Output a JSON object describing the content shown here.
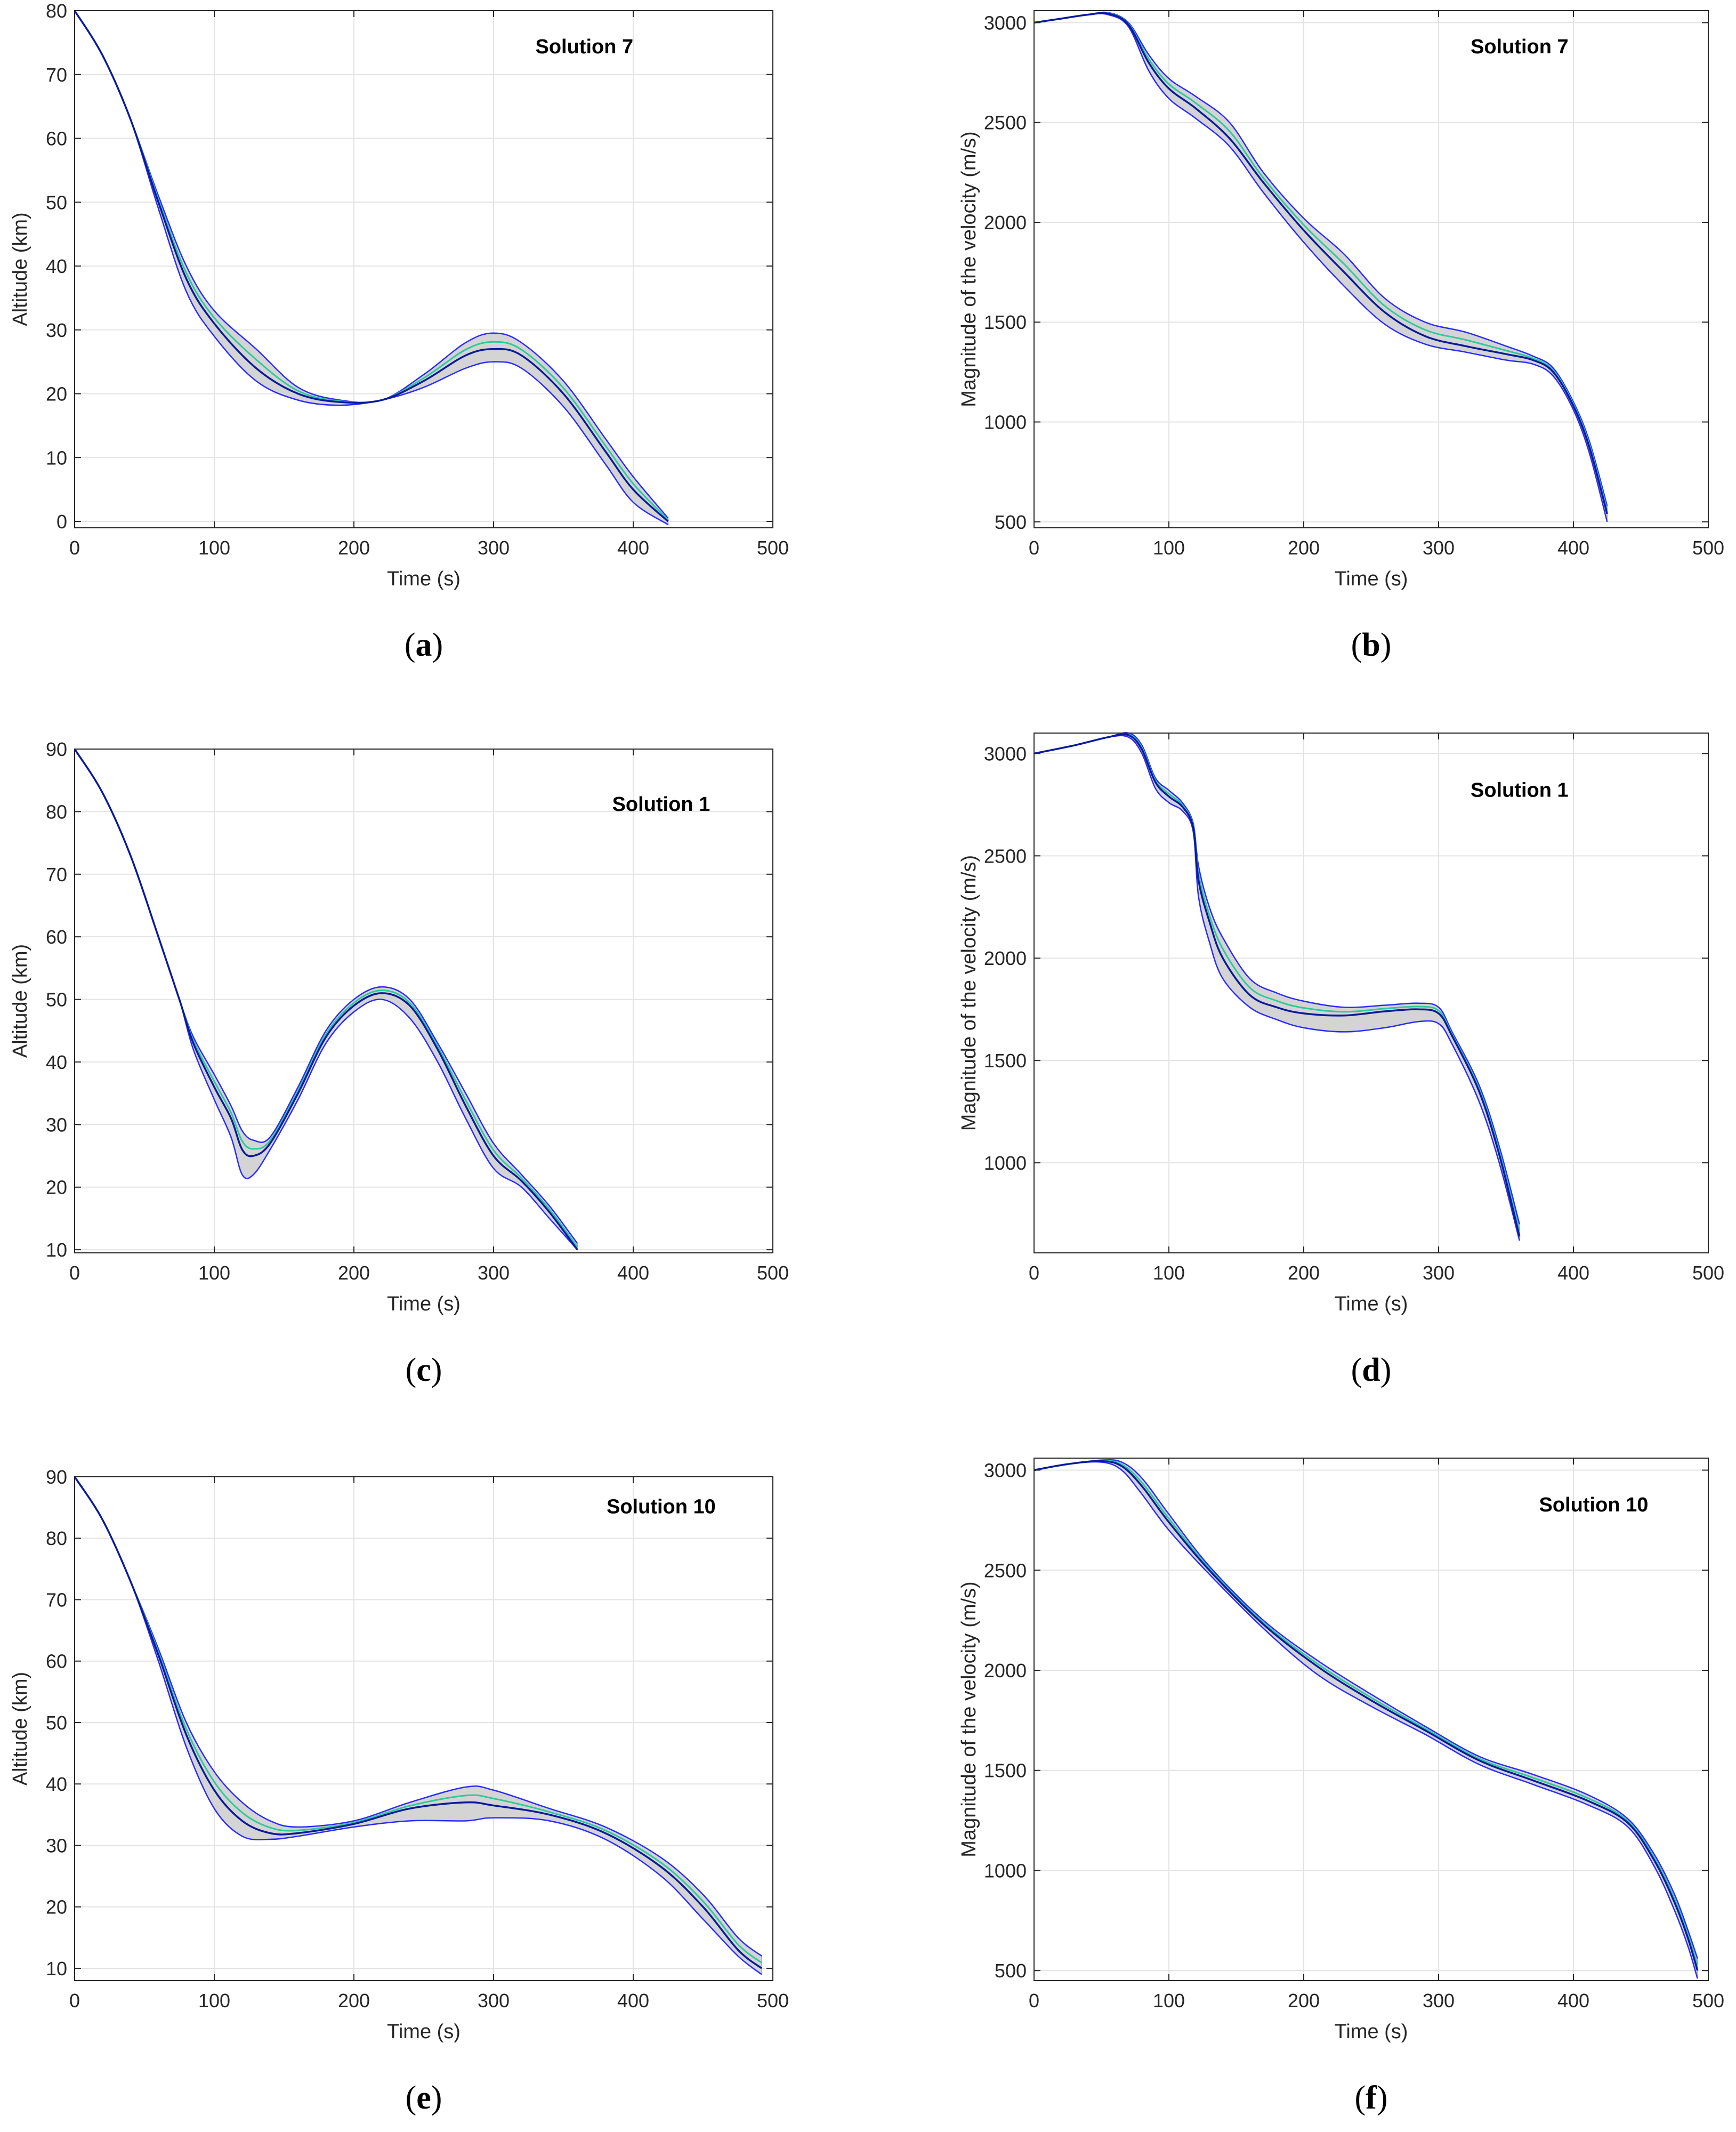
{
  "colors": {
    "band": "#d4d4d4",
    "band_edge": "#a8a8a8",
    "envelope": "#2a2aff",
    "mean": "#0a1a9a",
    "reference": "#2ec99a",
    "grid": "#e3e3e3",
    "axis": "#262626"
  },
  "chart_data": [
    {
      "id": "a",
      "type": "line",
      "caption": "a",
      "annotation": "Solution 7",
      "xlabel": "Time (s)",
      "ylabel": "Altitude (km)",
      "xlim": [
        0,
        500
      ],
      "ylim": [
        -1,
        80
      ],
      "xticks": [
        0,
        100,
        200,
        300,
        400,
        500
      ],
      "yticks": [
        0,
        10,
        20,
        30,
        40,
        50,
        60,
        70,
        80
      ],
      "grid": true,
      "series": [
        {
          "name": "upper",
          "x": [
            0,
            20,
            40,
            60,
            80,
            100,
            130,
            160,
            190,
            220,
            250,
            280,
            300,
            320,
            350,
            380,
            400,
            425
          ],
          "y": [
            80,
            73,
            63,
            51,
            40,
            33,
            27,
            21,
            19,
            19,
            23,
            28,
            29.5,
            28,
            22,
            13,
            7,
            0.5
          ]
        },
        {
          "name": "mean",
          "x": [
            0,
            20,
            40,
            60,
            80,
            100,
            130,
            160,
            190,
            220,
            250,
            280,
            300,
            320,
            350,
            380,
            400,
            425
          ],
          "y": [
            80,
            73,
            63,
            50,
            38,
            31,
            24,
            20,
            18.7,
            19,
            22,
            26,
            27,
            26,
            20,
            11,
            5,
            0
          ]
        },
        {
          "name": "lower",
          "x": [
            0,
            20,
            40,
            60,
            80,
            100,
            130,
            160,
            190,
            220,
            250,
            280,
            300,
            320,
            350,
            380,
            400,
            425
          ],
          "y": [
            80,
            73,
            63,
            49,
            36,
            29,
            22,
            19,
            18.2,
            19,
            21,
            24,
            25,
            24,
            18,
            9,
            3,
            -0.5
          ]
        }
      ]
    },
    {
      "id": "b",
      "type": "line",
      "caption": "b",
      "annotation": "Solution 7",
      "xlabel": "Time (s)",
      "ylabel": "Magnitude of the velocity (m/s)",
      "xlim": [
        0,
        500
      ],
      "ylim": [
        470,
        3060
      ],
      "xticks": [
        0,
        100,
        200,
        300,
        400,
        500
      ],
      "yticks": [
        500,
        1000,
        1500,
        2000,
        2500,
        3000
      ],
      "grid": true,
      "series": [
        {
          "name": "upper",
          "x": [
            0,
            20,
            40,
            55,
            70,
            85,
            100,
            120,
            145,
            170,
            200,
            230,
            260,
            290,
            320,
            350,
            370,
            385,
            400,
            412,
            425
          ],
          "y": [
            3000,
            3020,
            3040,
            3050,
            3000,
            2840,
            2720,
            2630,
            2500,
            2250,
            2020,
            1840,
            1620,
            1500,
            1450,
            1380,
            1330,
            1270,
            1100,
            900,
            580
          ]
        },
        {
          "name": "mean",
          "x": [
            0,
            20,
            40,
            55,
            70,
            85,
            100,
            120,
            145,
            170,
            200,
            230,
            260,
            290,
            320,
            350,
            370,
            385,
            400,
            412,
            425
          ],
          "y": [
            3000,
            3020,
            3040,
            3045,
            2990,
            2800,
            2670,
            2570,
            2420,
            2200,
            1960,
            1750,
            1550,
            1430,
            1380,
            1340,
            1310,
            1250,
            1080,
            870,
            540
          ]
        },
        {
          "name": "lower",
          "x": [
            0,
            20,
            40,
            55,
            70,
            85,
            100,
            120,
            145,
            170,
            200,
            230,
            260,
            290,
            320,
            350,
            370,
            385,
            400,
            412,
            425
          ],
          "y": [
            3000,
            3020,
            3040,
            3040,
            2980,
            2760,
            2620,
            2520,
            2380,
            2150,
            1900,
            1680,
            1490,
            1390,
            1350,
            1310,
            1290,
            1230,
            1060,
            840,
            500
          ]
        }
      ]
    },
    {
      "id": "c",
      "type": "line",
      "caption": "c",
      "annotation": "Solution 1",
      "xlabel": "Time (s)",
      "ylabel": "Altitude (km)",
      "xlim": [
        0,
        500
      ],
      "ylim": [
        9.5,
        90
      ],
      "xticks": [
        0,
        100,
        200,
        300,
        400,
        500
      ],
      "yticks": [
        10,
        20,
        30,
        40,
        50,
        60,
        70,
        80,
        90
      ],
      "grid": true,
      "series": [
        {
          "name": "upper",
          "x": [
            0,
            20,
            40,
            60,
            75,
            85,
            100,
            112,
            120,
            128,
            140,
            160,
            180,
            200,
            220,
            240,
            260,
            280,
            300,
            320,
            340,
            360
          ],
          "y": [
            90,
            83,
            73,
            60,
            50,
            44,
            38,
            33,
            29,
            27.5,
            28,
            36,
            45,
            50,
            52,
            50,
            43,
            35,
            27,
            22,
            17,
            11
          ]
        },
        {
          "name": "mean",
          "x": [
            0,
            20,
            40,
            60,
            75,
            85,
            100,
            112,
            120,
            128,
            140,
            160,
            180,
            200,
            220,
            240,
            260,
            280,
            300,
            320,
            340,
            360
          ],
          "y": [
            90,
            83,
            73,
            60,
            50,
            43,
            36,
            31,
            26,
            25,
            27,
            35,
            44,
            49,
            51,
            49,
            42,
            33,
            25,
            21,
            16,
            10
          ]
        },
        {
          "name": "lower",
          "x": [
            0,
            20,
            40,
            60,
            75,
            85,
            100,
            112,
            120,
            128,
            140,
            160,
            180,
            200,
            220,
            240,
            260,
            280,
            300,
            320,
            340,
            360
          ],
          "y": [
            90,
            83,
            73,
            60,
            50,
            42,
            34,
            28,
            22,
            22,
            26,
            34,
            43,
            48,
            50,
            47,
            40,
            31,
            23,
            20,
            15,
            10
          ]
        }
      ]
    },
    {
      "id": "d",
      "type": "line",
      "caption": "d",
      "annotation": "Solution 1",
      "xlabel": "Time (s)",
      "ylabel": "Magnitude of the velocity (m/s)",
      "xlim": [
        0,
        500
      ],
      "ylim": [
        560,
        3100
      ],
      "xticks": [
        0,
        100,
        200,
        300,
        400,
        500
      ],
      "yticks": [
        1000,
        1500,
        2000,
        2500,
        3000
      ],
      "grid": true,
      "series": [
        {
          "name": "upper",
          "x": [
            0,
            30,
            55,
            70,
            80,
            90,
            100,
            110,
            118,
            122,
            130,
            140,
            160,
            180,
            200,
            230,
            260,
            285,
            300,
            310,
            330,
            345,
            360
          ],
          "y": [
            3000,
            3040,
            3080,
            3100,
            3040,
            2880,
            2820,
            2760,
            2660,
            2450,
            2250,
            2100,
            1900,
            1830,
            1790,
            1760,
            1770,
            1780,
            1760,
            1640,
            1380,
            1080,
            700
          ]
        },
        {
          "name": "mean",
          "x": [
            0,
            30,
            55,
            70,
            80,
            90,
            100,
            110,
            118,
            122,
            130,
            140,
            160,
            180,
            200,
            230,
            260,
            285,
            300,
            310,
            330,
            345,
            360
          ],
          "y": [
            3000,
            3040,
            3080,
            3090,
            3020,
            2860,
            2790,
            2740,
            2640,
            2380,
            2180,
            2000,
            1820,
            1760,
            1730,
            1720,
            1740,
            1750,
            1730,
            1620,
            1350,
            1040,
            640
          ]
        },
        {
          "name": "lower",
          "x": [
            0,
            30,
            55,
            70,
            80,
            90,
            100,
            110,
            118,
            122,
            130,
            140,
            160,
            180,
            200,
            230,
            260,
            285,
            300,
            310,
            330,
            345,
            360
          ],
          "y": [
            3000,
            3040,
            3080,
            3080,
            3000,
            2830,
            2760,
            2720,
            2620,
            2300,
            2080,
            1900,
            1760,
            1700,
            1660,
            1640,
            1660,
            1690,
            1680,
            1580,
            1300,
            1000,
            620
          ]
        }
      ]
    },
    {
      "id": "e",
      "type": "line",
      "caption": "e",
      "annotation": "Solution 10",
      "xlabel": "Time (s)",
      "ylabel": "Altitude (km)",
      "xlim": [
        0,
        500
      ],
      "ylim": [
        8,
        90
      ],
      "xticks": [
        0,
        100,
        200,
        300,
        400,
        500
      ],
      "yticks": [
        10,
        20,
        30,
        40,
        50,
        60,
        70,
        80,
        90
      ],
      "grid": true,
      "series": [
        {
          "name": "upper",
          "x": [
            0,
            20,
            40,
            60,
            80,
            100,
            120,
            140,
            160,
            200,
            240,
            280,
            300,
            340,
            380,
            420,
            450,
            475,
            492
          ],
          "y": [
            90,
            83,
            73,
            62,
            50,
            42,
            37,
            34,
            33,
            34,
            37,
            39.5,
            39,
            36,
            33,
            28,
            22,
            15,
            12
          ]
        },
        {
          "name": "mean",
          "x": [
            0,
            20,
            40,
            60,
            80,
            100,
            120,
            140,
            160,
            200,
            240,
            280,
            300,
            340,
            380,
            420,
            450,
            475,
            492
          ],
          "y": [
            90,
            83,
            73,
            61,
            48,
            39,
            34,
            32,
            32,
            33.5,
            36,
            37,
            36.5,
            35,
            32,
            26.5,
            20,
            13,
            10
          ]
        },
        {
          "name": "lower",
          "x": [
            0,
            20,
            40,
            60,
            80,
            100,
            120,
            140,
            160,
            200,
            240,
            280,
            300,
            340,
            380,
            420,
            450,
            475,
            492
          ],
          "y": [
            90,
            83,
            73,
            60,
            46,
            36,
            31.5,
            31,
            31.5,
            33,
            34,
            34,
            34.5,
            34,
            31,
            25,
            18,
            12,
            9
          ]
        }
      ]
    },
    {
      "id": "f",
      "type": "line",
      "caption": "f",
      "annotation": "Solution 10",
      "xlabel": "Time (s)",
      "ylabel": "Magnitude of the velocity (m/s)",
      "xlim": [
        0,
        500
      ],
      "ylim": [
        450,
        3060
      ],
      "xticks": [
        0,
        100,
        200,
        300,
        400,
        500
      ],
      "yticks": [
        500,
        1000,
        1500,
        2000,
        2500,
        3000
      ],
      "grid": true,
      "series": [
        {
          "name": "upper",
          "x": [
            0,
            25,
            50,
            65,
            80,
            100,
            130,
            170,
            210,
            250,
            290,
            330,
            370,
            410,
            440,
            460,
            475,
            485,
            492
          ],
          "y": [
            3000,
            3030,
            3050,
            3040,
            2960,
            2780,
            2520,
            2250,
            2050,
            1880,
            1720,
            1570,
            1480,
            1380,
            1260,
            1080,
            880,
            700,
            560
          ]
        },
        {
          "name": "mean",
          "x": [
            0,
            25,
            50,
            65,
            80,
            100,
            130,
            170,
            210,
            250,
            290,
            330,
            370,
            410,
            440,
            460,
            475,
            485,
            492
          ],
          "y": [
            3000,
            3030,
            3045,
            3020,
            2920,
            2740,
            2500,
            2230,
            2020,
            1850,
            1700,
            1550,
            1450,
            1350,
            1240,
            1050,
            840,
            660,
            500
          ]
        },
        {
          "name": "lower",
          "x": [
            0,
            25,
            50,
            65,
            80,
            100,
            130,
            170,
            210,
            250,
            290,
            330,
            370,
            410,
            440,
            460,
            475,
            485,
            492
          ],
          "y": [
            3000,
            3030,
            3040,
            3000,
            2880,
            2700,
            2480,
            2210,
            1980,
            1820,
            1680,
            1530,
            1430,
            1330,
            1220,
            1020,
            800,
            620,
            460
          ]
        }
      ]
    }
  ]
}
